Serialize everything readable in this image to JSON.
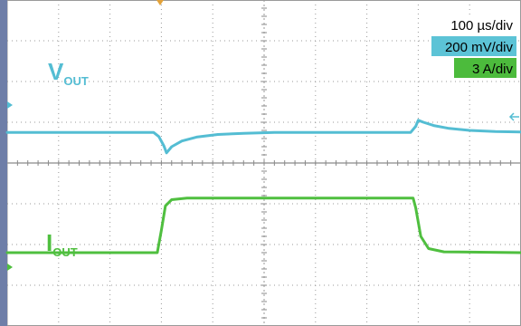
{
  "scales": {
    "time": "100 µs/div",
    "voltage": "200 mV/div",
    "current": "3 A/div"
  },
  "colors": {
    "vout": "#54bdd3",
    "iout": "#4fbf3f",
    "voltage_box": "#5cc3d6",
    "current_box": "#4cbb3c",
    "grid": "#9a9a9a",
    "left_bar": "#6e7ea8",
    "marker": "#e3a23a"
  },
  "chart_data": {
    "type": "line",
    "title": "",
    "xlabel": "",
    "ylabel": "",
    "x_divisions": 10,
    "y_divisions": 8,
    "xlim": [
      0,
      10
    ],
    "ylim": [
      -4,
      4
    ],
    "series": [
      {
        "name_main": "V",
        "name_sub": "OUT",
        "points": [
          [
            0,
            0.75
          ],
          [
            1.35,
            0.75
          ],
          [
            2.85,
            0.75
          ],
          [
            2.95,
            0.65
          ],
          [
            3.05,
            0.42
          ],
          [
            3.1,
            0.25
          ],
          [
            3.2,
            0.4
          ],
          [
            3.4,
            0.54
          ],
          [
            3.7,
            0.64
          ],
          [
            4.1,
            0.7
          ],
          [
            4.6,
            0.73
          ],
          [
            5.2,
            0.75
          ],
          [
            6.5,
            0.75
          ],
          [
            7.85,
            0.75
          ],
          [
            7.95,
            0.9
          ],
          [
            8.0,
            1.05
          ],
          [
            8.1,
            1.0
          ],
          [
            8.3,
            0.92
          ],
          [
            8.6,
            0.85
          ],
          [
            9.0,
            0.8
          ],
          [
            9.5,
            0.77
          ],
          [
            10,
            0.76
          ]
        ]
      },
      {
        "name_main": "I",
        "name_sub": "OUT",
        "points": [
          [
            0,
            -2.2
          ],
          [
            2.92,
            -2.2
          ],
          [
            3.0,
            -1.65
          ],
          [
            3.08,
            -1.05
          ],
          [
            3.2,
            -0.9
          ],
          [
            3.5,
            -0.86
          ],
          [
            5.0,
            -0.86
          ],
          [
            7.9,
            -0.86
          ],
          [
            7.95,
            -1.1
          ],
          [
            8.05,
            -1.8
          ],
          [
            8.2,
            -2.1
          ],
          [
            8.5,
            -2.18
          ],
          [
            10,
            -2.2
          ]
        ]
      }
    ]
  }
}
